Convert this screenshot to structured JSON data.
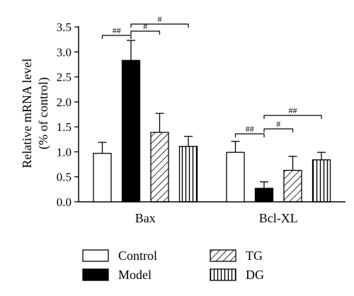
{
  "chart_data": {
    "type": "bar",
    "title": "",
    "xlabel": "",
    "ylabel_lines": [
      "Relative mRNA level",
      "(% of control)"
    ],
    "ylim": [
      0,
      3.5
    ],
    "yticks": [
      "0.0",
      "0.5",
      "1.0",
      "1.5",
      "2.0",
      "2.5",
      "3.0",
      "3.5"
    ],
    "grid": false,
    "legend_position": "bottom",
    "categories": [
      "Bax",
      "Bcl-XL"
    ],
    "series": [
      {
        "name": "Control",
        "pattern": "white",
        "values": [
          0.97,
          0.99
        ],
        "errors": [
          0.22,
          0.22
        ]
      },
      {
        "name": "Model",
        "pattern": "black",
        "values": [
          2.83,
          0.27
        ],
        "errors": [
          0.4,
          0.13
        ]
      },
      {
        "name": "TG",
        "pattern": "diagonal",
        "values": [
          1.39,
          0.63
        ],
        "errors": [
          0.38,
          0.28
        ]
      },
      {
        "name": "DG",
        "pattern": "vertical",
        "values": [
          1.11,
          0.84
        ],
        "errors": [
          0.2,
          0.15
        ]
      }
    ],
    "significance": [
      {
        "category": 0,
        "from": 0,
        "to": 1,
        "label": "##"
      },
      {
        "category": 0,
        "from": 1,
        "to": 2,
        "label": "#"
      },
      {
        "category": 0,
        "from": 1,
        "to": 3,
        "label": "#"
      },
      {
        "category": 1,
        "from": 0,
        "to": 1,
        "label": "##"
      },
      {
        "category": 1,
        "from": 1,
        "to": 2,
        "label": "#"
      },
      {
        "category": 1,
        "from": 1,
        "to": 3,
        "label": "##"
      }
    ]
  }
}
